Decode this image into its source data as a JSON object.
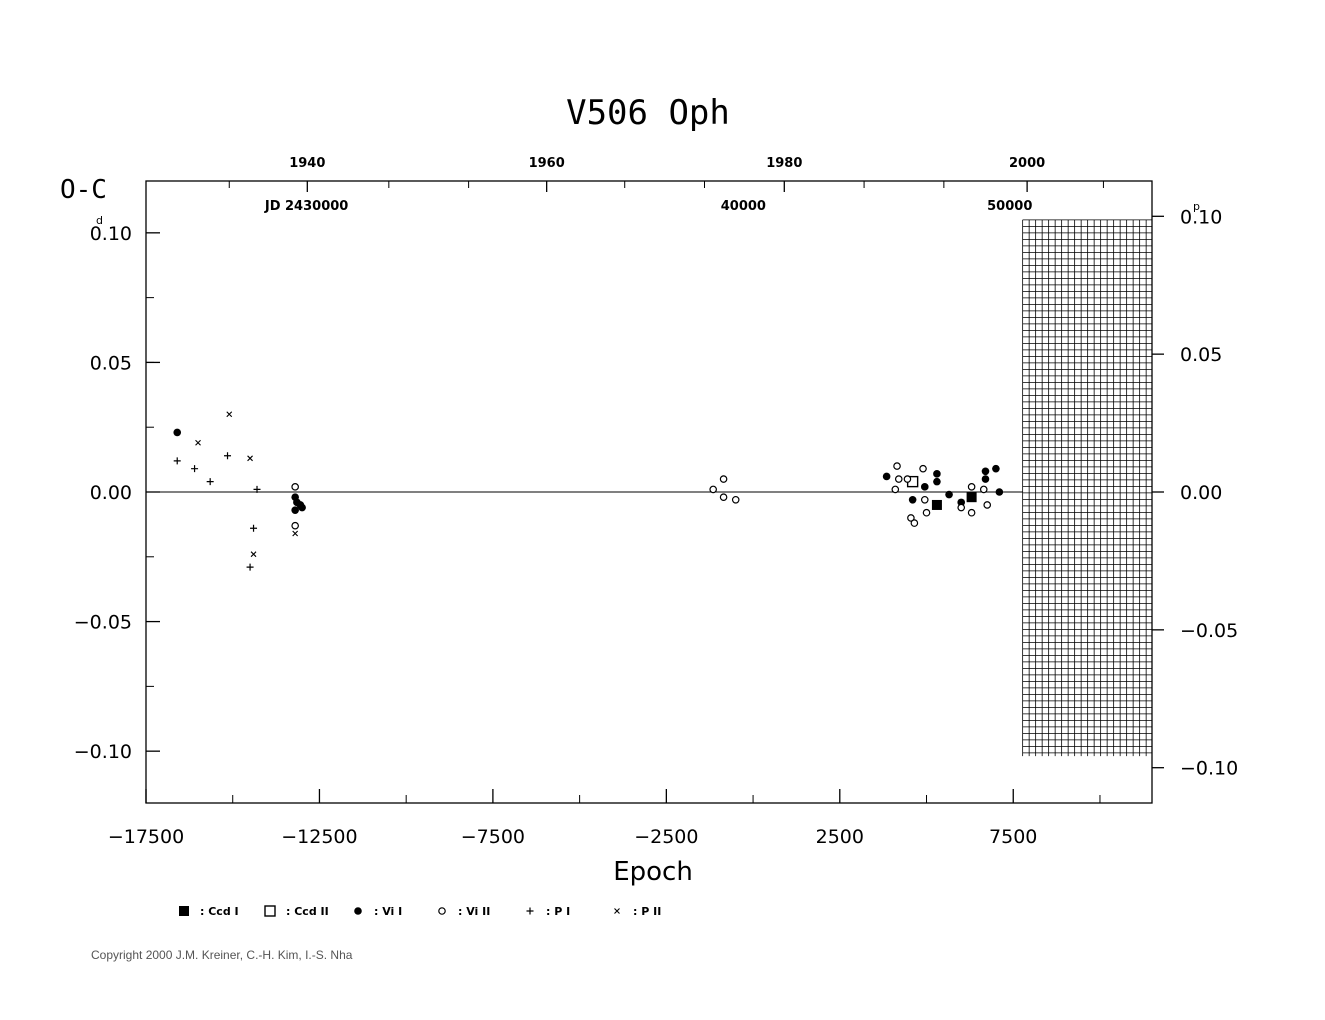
{
  "chart_data": {
    "type": "scatter",
    "title": "V506 Oph",
    "ylabel": "O-C",
    "ylabel_unit": "d",
    "xlabel": "Epoch",
    "right_unit": "p",
    "xlim": [
      -17500,
      11500
    ],
    "ylim": [
      -0.12,
      0.12
    ],
    "x_ticks": [
      -17500,
      -12500,
      -7500,
      -2500,
      2500,
      7500
    ],
    "x_tick_labels": [
      "−17500",
      "−12500",
      "−7500",
      "−2500",
      "2500",
      "7500"
    ],
    "y_ticks": [
      0.1,
      0.05,
      0.0,
      -0.05,
      -0.1
    ],
    "y_tick_labels": [
      "0.10",
      "0.05",
      "0.00",
      "−0.05",
      "−0.10"
    ],
    "right_ticks": [
      0.1,
      0.05,
      0.0,
      -0.05,
      -0.1
    ],
    "right_tick_labels": [
      "0.10",
      "0.05",
      "0.00",
      "−0.05",
      "−0.10"
    ],
    "year_ticks": [
      {
        "label": "1940",
        "epoch": -12850
      },
      {
        "label": "1960",
        "epoch": -5950
      },
      {
        "label": "1980",
        "epoch": 900
      },
      {
        "label": "2000",
        "epoch": 7900
      }
    ],
    "jd_ticks": [
      {
        "label": "JD  2430000",
        "epoch": -12870
      },
      {
        "label": "40000",
        "epoch": -280
      },
      {
        "label": "50000",
        "epoch": 7400
      }
    ],
    "shaded_region": {
      "x": [
        7800,
        11500
      ],
      "y": [
        -0.1,
        0.105
      ]
    },
    "zero_line": 0.0,
    "series": [
      {
        "name": "Ccd I",
        "marker": "filled-square",
        "points": [
          [
            5300,
            -0.005
          ],
          [
            6300,
            -0.002
          ]
        ]
      },
      {
        "name": "Ccd II",
        "marker": "open-square",
        "points": [
          [
            4600,
            0.004
          ]
        ]
      },
      {
        "name": "Vi I",
        "marker": "filled-circle",
        "points": [
          [
            -16600,
            0.023
          ],
          [
            -13200,
            -0.002
          ],
          [
            -13150,
            -0.004
          ],
          [
            -13050,
            -0.005
          ],
          [
            -13000,
            -0.006
          ],
          [
            -13200,
            -0.007
          ],
          [
            3850,
            0.006
          ],
          [
            4600,
            -0.003
          ],
          [
            4950,
            0.002
          ],
          [
            5300,
            0.007
          ],
          [
            5300,
            0.004
          ],
          [
            5650,
            -0.001
          ],
          [
            6000,
            -0.004
          ],
          [
            6700,
            0.008
          ],
          [
            6700,
            0.005
          ],
          [
            7000,
            0.009
          ],
          [
            7100,
            0.0
          ]
        ]
      },
      {
        "name": "Vi II",
        "marker": "open-circle",
        "points": [
          [
            -13200,
            0.002
          ],
          [
            -13200,
            -0.013
          ],
          [
            -1150,
            0.001
          ],
          [
            -850,
            0.005
          ],
          [
            -850,
            -0.002
          ],
          [
            -500,
            -0.003
          ],
          [
            4150,
            0.01
          ],
          [
            4200,
            0.005
          ],
          [
            4100,
            0.001
          ],
          [
            4450,
            0.005
          ],
          [
            4550,
            -0.01
          ],
          [
            4650,
            -0.012
          ],
          [
            4900,
            0.009
          ],
          [
            4950,
            -0.003
          ],
          [
            5000,
            -0.008
          ],
          [
            6000,
            -0.006
          ],
          [
            6300,
            0.002
          ],
          [
            6300,
            -0.008
          ],
          [
            6650,
            0.001
          ],
          [
            6750,
            -0.005
          ]
        ]
      },
      {
        "name": "P I",
        "marker": "plus",
        "points": [
          [
            -16600,
            0.012
          ],
          [
            -16100,
            0.009
          ],
          [
            -15650,
            0.004
          ],
          [
            -15150,
            0.014
          ],
          [
            -14500,
            -0.029
          ],
          [
            -14400,
            -0.014
          ],
          [
            -14300,
            0.001
          ]
        ]
      },
      {
        "name": "P II",
        "marker": "cross",
        "points": [
          [
            -15100,
            0.03
          ],
          [
            -16000,
            0.019
          ],
          [
            -14500,
            0.013
          ],
          [
            -14400,
            -0.024
          ],
          [
            -13200,
            -0.016
          ]
        ]
      }
    ],
    "legend": [
      {
        "marker": "filled-square",
        "label": ": Ccd  I"
      },
      {
        "marker": "open-square",
        "label": ": Ccd  II"
      },
      {
        "marker": "filled-circle",
        "label": ": Vi  I"
      },
      {
        "marker": "open-circle",
        "label": ": Vi  II"
      },
      {
        "marker": "plus",
        "label": ": P  I"
      },
      {
        "marker": "cross",
        "label": ": P  II"
      }
    ],
    "legend_position": "bottom-left",
    "grid": false
  },
  "copyright": "Copyright 2000 J.M. Kreiner, C.-H. Kim, I.-S. Nha"
}
